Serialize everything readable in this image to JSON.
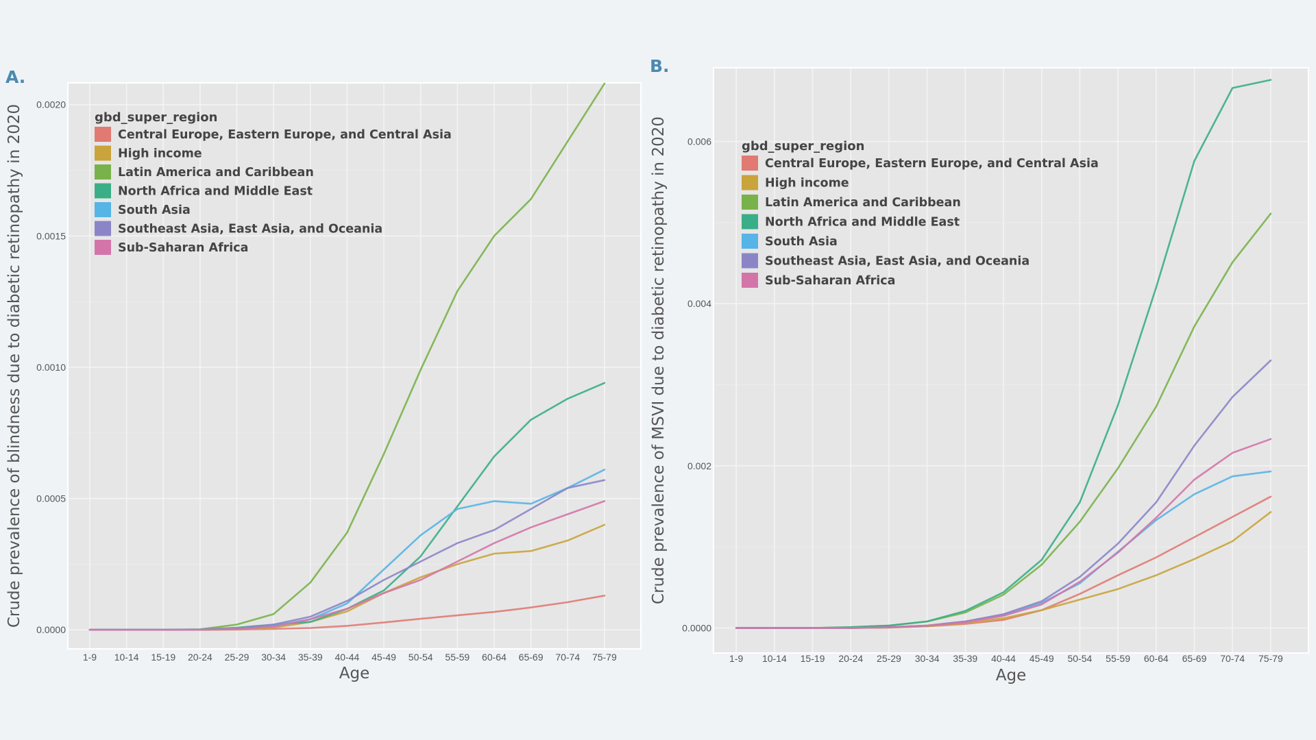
{
  "colors": {
    "Central Europe, Eastern Europe, and Central Asia": "#e07a73",
    "High income": "#c9a43c",
    "Latin America and Caribbean": "#79b24a",
    "North Africa and Middle East": "#3aae86",
    "South Asia": "#56b4e6",
    "Southeast Asia, East Asia, and Oceania": "#8b85c8",
    "Sub-Saharan Africa": "#d375a8"
  },
  "chart_data": [
    {
      "panel_label": "A.",
      "type": "line",
      "title": "",
      "xlabel": "Age",
      "ylabel": "Crude prevalence of blindness due to diabetic retinopathy in 2020",
      "legend_title": "gbd_super_region",
      "legend_position": "top-left",
      "categories": [
        "1-9",
        "10-14",
        "15-19",
        "20-24",
        "25-29",
        "30-34",
        "35-39",
        "40-44",
        "45-49",
        "50-54",
        "55-59",
        "60-64",
        "65-69",
        "70-74",
        "75-79"
      ],
      "ylim": [
        -7e-05,
        0.00208
      ],
      "yticks": [
        0,
        0.0005,
        0.001,
        0.0015,
        0.002
      ],
      "ytick_labels": [
        "0.0000",
        "0.0005",
        "0.0010",
        "0.0015",
        "0.0020"
      ],
      "series": [
        {
          "name": "Central Europe, Eastern Europe, and Central Asia",
          "values": [
            0,
            0,
            0,
            0,
            1e-06,
            3e-06,
            7e-06,
            1.5e-05,
            2.8e-05,
            4.2e-05,
            5.5e-05,
            6.8e-05,
            8.5e-05,
            0.000105,
            0.00013
          ]
        },
        {
          "name": "High income",
          "values": [
            0,
            0,
            0,
            0,
            2e-06,
            8e-06,
            3e-05,
            7e-05,
            0.00014,
            0.0002,
            0.00025,
            0.00029,
            0.0003,
            0.00034,
            0.0004
          ]
        },
        {
          "name": "Latin America and Caribbean",
          "values": [
            0,
            0,
            0,
            2e-06,
            2e-05,
            6e-05,
            0.00018,
            0.00037,
            0.00067,
            0.00099,
            0.00129,
            0.0015,
            0.00164,
            0.00186,
            0.00208
          ]
        },
        {
          "name": "North Africa and Middle East",
          "values": [
            0,
            0,
            0,
            1e-06,
            8e-06,
            2e-05,
            3e-05,
            8e-05,
            0.00015,
            0.00028,
            0.00047,
            0.00066,
            0.0008,
            0.00088,
            0.00094
          ]
        },
        {
          "name": "South Asia",
          "values": [
            0,
            0,
            0,
            1e-06,
            5e-06,
            1.5e-05,
            4e-05,
            0.0001,
            0.00023,
            0.00036,
            0.00046,
            0.00049,
            0.00048,
            0.00054,
            0.00061
          ]
        },
        {
          "name": "Southeast Asia, East Asia, and Oceania",
          "values": [
            0,
            0,
            0,
            1e-06,
            5e-06,
            2e-05,
            5e-05,
            0.00011,
            0.00019,
            0.00026,
            0.00033,
            0.00038,
            0.00046,
            0.00054,
            0.00057
          ]
        },
        {
          "name": "Sub-Saharan Africa",
          "values": [
            0,
            0,
            0,
            0,
            3e-06,
            1.2e-05,
            4e-05,
            8e-05,
            0.00014,
            0.00019,
            0.00026,
            0.00033,
            0.00039,
            0.00044,
            0.00049
          ]
        }
      ]
    },
    {
      "panel_label": "B.",
      "type": "line",
      "title": "",
      "xlabel": "Age",
      "ylabel": "Crude prevalence of MSVI due to diabetic retinopathy in 2020",
      "legend_title": "gbd_super_region",
      "legend_position": "top-left",
      "categories": [
        "1-9",
        "10-14",
        "15-19",
        "20-24",
        "25-29",
        "30-34",
        "35-39",
        "40-44",
        "45-49",
        "50-54",
        "55-59",
        "60-64",
        "65-69",
        "70-74",
        "75-79"
      ],
      "ylim": [
        -0.0003,
        0.0069
      ],
      "yticks": [
        0,
        0.002,
        0.004,
        0.006
      ],
      "ytick_labels": [
        "0.0000",
        "0.002",
        "0.004",
        "0.006"
      ],
      "series": [
        {
          "name": "Central Europe, Eastern Europe, and Central Asia",
          "values": [
            0,
            0,
            0,
            0,
            5e-06,
            2e-05,
            5e-05,
            0.0001,
            0.00022,
            0.00042,
            0.00065,
            0.00087,
            0.00112,
            0.00137,
            0.00162
          ]
        },
        {
          "name": "High income",
          "values": [
            0,
            0,
            0,
            0,
            6e-06,
            2e-05,
            6e-05,
            0.00012,
            0.00022,
            0.00035,
            0.00048,
            0.00065,
            0.00085,
            0.00107,
            0.00143
          ]
        },
        {
          "name": "Latin America and Caribbean",
          "values": [
            0,
            0,
            0,
            1e-05,
            3e-05,
            8e-05,
            0.00019,
            0.00041,
            0.00078,
            0.00131,
            0.00197,
            0.00273,
            0.00372,
            0.00451,
            0.00511
          ]
        },
        {
          "name": "North Africa and Middle East",
          "values": [
            0,
            0,
            0,
            1e-05,
            3e-05,
            8e-05,
            0.00021,
            0.00044,
            0.00084,
            0.00155,
            0.00275,
            0.0042,
            0.00576,
            0.00666,
            0.00676
          ]
        },
        {
          "name": "South Asia",
          "values": [
            0,
            0,
            0,
            0,
            1e-05,
            3e-05,
            8e-05,
            0.00016,
            0.00031,
            0.00055,
            0.00094,
            0.00133,
            0.00165,
            0.00187,
            0.00193
          ]
        },
        {
          "name": "Southeast Asia, East Asia, and Oceania",
          "values": [
            0,
            0,
            0,
            0,
            1e-05,
            3e-05,
            8e-05,
            0.00017,
            0.00033,
            0.00063,
            0.00104,
            0.00155,
            0.00225,
            0.00285,
            0.0033
          ]
        },
        {
          "name": "Sub-Saharan Africa",
          "values": [
            0,
            0,
            0,
            0,
            8e-06,
            3e-05,
            7e-05,
            0.00015,
            0.00029,
            0.00057,
            0.00093,
            0.00136,
            0.00183,
            0.00216,
            0.00233
          ]
        }
      ]
    }
  ]
}
